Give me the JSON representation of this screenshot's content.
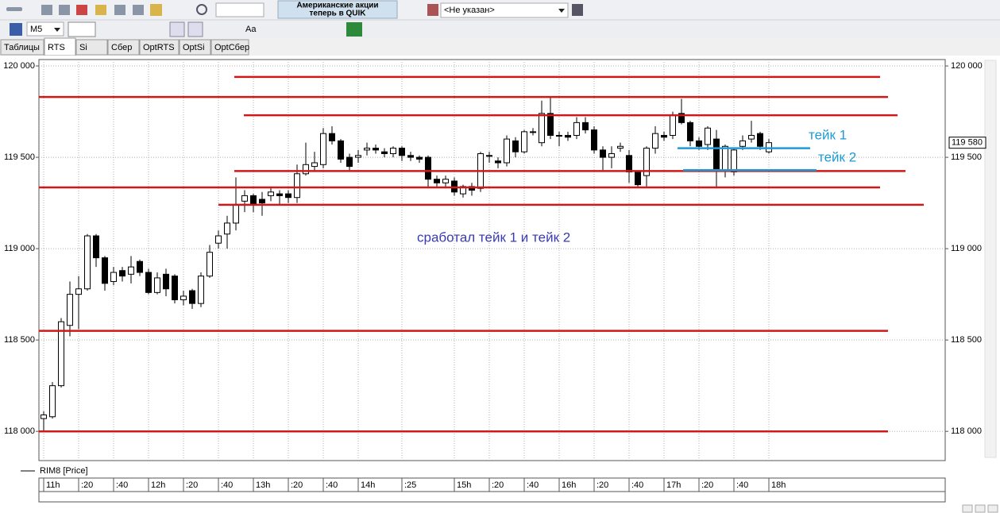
{
  "toolbar": {
    "banner": [
      "Американские акции",
      "теперь в QUIK"
    ],
    "account": "<Не указан>",
    "interval": "M5",
    "font_button": "Aa"
  },
  "tabs": [
    "Таблицы",
    "RTS",
    "Si",
    "Сбер",
    "OptRTS",
    "OptSi",
    "OptСбер"
  ],
  "chart_data": {
    "type": "candlestick",
    "grid": true,
    "categories": [
      "11h",
      null,
      null,
      null,
      ":20",
      null,
      null,
      null,
      ":40",
      null,
      null,
      null,
      "12h",
      null,
      null,
      null,
      ":20",
      null,
      null,
      null,
      ":40",
      null,
      null,
      null,
      "13h",
      null,
      null,
      null,
      ":20",
      null,
      null,
      null,
      ":40",
      null,
      null,
      null,
      "14h",
      null,
      null,
      null,
      null,
      ":25",
      null,
      null,
      null,
      null,
      null,
      "15h",
      null,
      null,
      null,
      ":20",
      null,
      null,
      null,
      ":40",
      null,
      null,
      null,
      "16h",
      null,
      null,
      null,
      ":20",
      null,
      null,
      null,
      ":40",
      null,
      null,
      null,
      "17h",
      null,
      null,
      null,
      ":20",
      null,
      null,
      null,
      ":40",
      null,
      null,
      null,
      "18h"
    ],
    "series": [
      {
        "name": "RIM8 [Price]",
        "color": "#000000",
        "open": [
          118070,
          118080,
          118250,
          118580,
          118750,
          118780,
          119070,
          118950,
          118820,
          118880,
          118860,
          118930,
          118870,
          118760,
          118860,
          118850,
          118720,
          118770,
          118700,
          118850,
          119030,
          119080,
          119140,
          119260,
          119290,
          119270,
          119290,
          119300,
          119300,
          119280,
          119410,
          119450,
          119460,
          119630,
          119590,
          119500,
          119500,
          119540,
          119550,
          119530,
          119520,
          119550,
          119510,
          119500,
          119500,
          119380,
          119360,
          119370,
          119300,
          119340,
          119330,
          119510,
          119480,
          119470,
          119590,
          119530,
          119640,
          119580,
          119740,
          119620,
          119620,
          119620,
          119690,
          119650,
          119540,
          119500,
          119550,
          119510,
          119420,
          119400,
          119550,
          119620,
          119620,
          119740,
          119690,
          119590,
          119570,
          119600,
          119430,
          119420,
          119560,
          119600,
          119630,
          119530
        ],
        "high": [
          118110,
          118270,
          118620,
          118820,
          118850,
          119080,
          119080,
          118960,
          118900,
          118900,
          118960,
          118940,
          118890,
          118870,
          118890,
          118860,
          118770,
          118780,
          118870,
          119020,
          119100,
          119180,
          119390,
          119320,
          119300,
          119310,
          119340,
          119320,
          119320,
          119460,
          119580,
          119530,
          119660,
          119670,
          119600,
          119520,
          119540,
          119580,
          119570,
          119550,
          119560,
          119560,
          119530,
          119510,
          119510,
          119400,
          119400,
          119390,
          119350,
          119360,
          119530,
          119530,
          119500,
          119620,
          119610,
          119650,
          119660,
          119810,
          119830,
          119640,
          119640,
          119720,
          119720,
          119670,
          119560,
          119560,
          119580,
          119540,
          119430,
          119560,
          119670,
          119640,
          119750,
          119820,
          119700,
          119610,
          119670,
          119650,
          119570,
          119550,
          119620,
          119700,
          119640,
          119600
        ],
        "low": [
          118000,
          118070,
          118240,
          118520,
          118560,
          118770,
          118900,
          118770,
          118800,
          118820,
          118810,
          118850,
          118750,
          118750,
          118740,
          118700,
          118690,
          118670,
          118680,
          118840,
          119000,
          119000,
          119100,
          119200,
          119200,
          119180,
          119260,
          119240,
          119250,
          119250,
          119400,
          119420,
          119440,
          119570,
          119470,
          119420,
          119470,
          119510,
          119520,
          119500,
          119500,
          119480,
          119480,
          119470,
          119330,
          119340,
          119330,
          119290,
          119280,
          119290,
          119310,
          119470,
          119440,
          119450,
          119500,
          119520,
          119620,
          119560,
          119600,
          119560,
          119590,
          119600,
          119630,
          119520,
          119430,
          119440,
          119530,
          119360,
          119340,
          119340,
          119520,
          119590,
          119600,
          119680,
          119560,
          119540,
          119540,
          119330,
          119390,
          119400,
          119540,
          119580,
          119540,
          119520
        ],
        "close": [
          118090,
          118250,
          118600,
          118750,
          118780,
          119070,
          118950,
          118810,
          118870,
          118850,
          118900,
          118870,
          118760,
          118840,
          118780,
          118720,
          118740,
          118700,
          118850,
          118980,
          119070,
          119140,
          119240,
          119290,
          119240,
          119250,
          119310,
          119290,
          119280,
          119410,
          119460,
          119470,
          119630,
          119590,
          119490,
          119450,
          119510,
          119550,
          119540,
          119520,
          119550,
          119510,
          119500,
          119490,
          119380,
          119360,
          119380,
          119310,
          119340,
          119320,
          119520,
          119510,
          119470,
          119600,
          119530,
          119640,
          119640,
          119740,
          119620,
          119620,
          119610,
          119690,
          119650,
          119540,
          119500,
          119520,
          119560,
          119420,
          119350,
          119550,
          119630,
          119610,
          119730,
          119690,
          119590,
          119560,
          119660,
          119430,
          119560,
          119540,
          119590,
          119620,
          119560,
          119580
        ]
      }
    ],
    "ylim": [
      117840,
      120035
    ],
    "yticks": [
      {
        "value": 118000,
        "label": "118 000"
      },
      {
        "value": 118500,
        "label": "118 500"
      },
      {
        "value": 119000,
        "label": "119 000"
      },
      {
        "value": 119500,
        "label": "119 500"
      },
      {
        "value": 120000,
        "label": "120 000"
      }
    ],
    "last_price": {
      "value": 119580,
      "label": "119 580"
    },
    "levels": [
      {
        "value": 119940,
        "color": "#d01818"
      },
      {
        "value": 119830,
        "color": "#d01818"
      },
      {
        "value": 119730,
        "color": "#d01818"
      },
      {
        "value": 119425,
        "color": "#d01818"
      },
      {
        "value": 119335,
        "color": "#d01818"
      },
      {
        "value": 119240,
        "color": "#d01818"
      },
      {
        "value": 118550,
        "color": "#d01818"
      },
      {
        "value": 118000,
        "color": "#d01818"
      },
      {
        "value": 119550,
        "color": "#1e9ad6"
      },
      {
        "value": 119430,
        "color": "#1e9ad6"
      }
    ],
    "annotations": [
      {
        "text": "сработал тейк 1 и тейк 2",
        "color": "#3a3ab4"
      },
      {
        "text": "тейк 1",
        "color": "#1e9ad6"
      },
      {
        "text": "тейк 2",
        "color": "#1e9ad6"
      }
    ]
  }
}
